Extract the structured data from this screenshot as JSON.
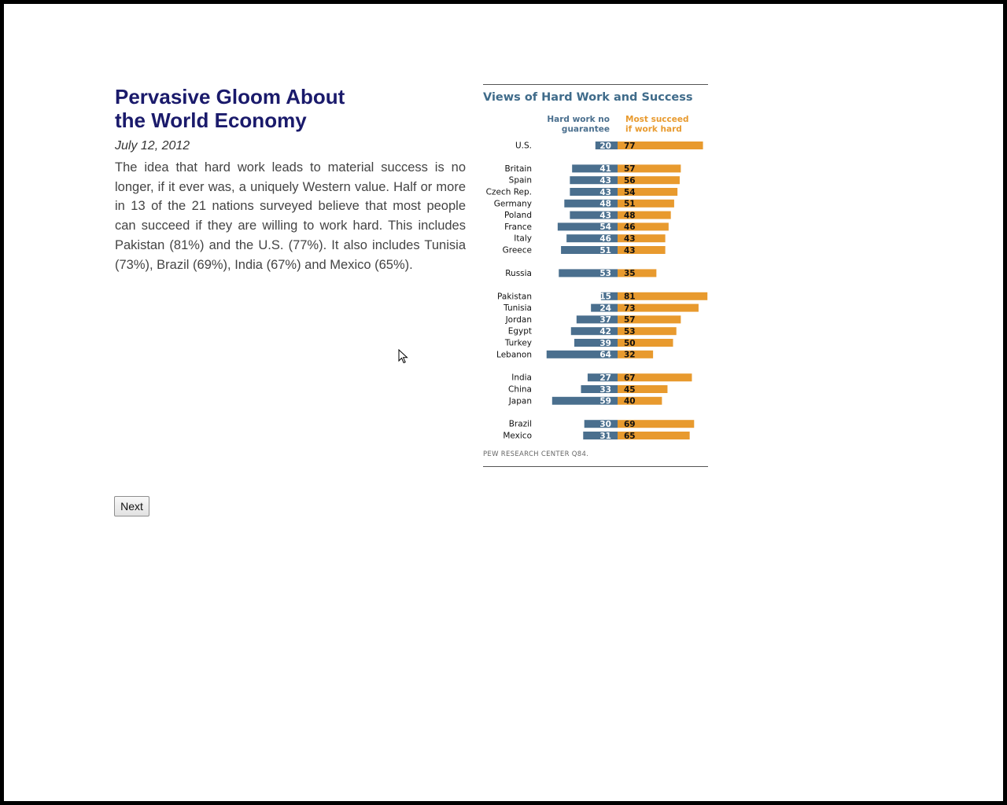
{
  "article": {
    "title_line1": "Pervasive Gloom About",
    "title_line2": "the World Economy",
    "date": "July 12, 2012",
    "body": "The idea that hard work leads to material success is no longer, if it ever was, a uniquely Western value. Half or more in 13 of the 21 nations surveyed believe that most people can succeed if they are willing to work hard. This includes Pakistan (81%) and the U.S. (77%). It also includes Tunisia (73%), Brazil (69%), India (67%) and Mexico (65%)."
  },
  "nav": {
    "next_label": "Next"
  },
  "colors": {
    "title": "#1a1a6b",
    "series_blue": "#4a6f8e",
    "series_orange": "#e89a2e"
  },
  "chart_data": {
    "type": "bar",
    "title": "Views of Hard Work and Success",
    "source": "PEW RESEARCH CENTER Q84.",
    "series": [
      {
        "name": "Hard work no guarantee",
        "header_lines": [
          "Hard work no",
          "guarantee"
        ],
        "color": "#4a6f8e"
      },
      {
        "name": "Most succeed if work hard",
        "header_lines": [
          "Most succeed",
          "if work hard"
        ],
        "color": "#e89a2e"
      }
    ],
    "groups": [
      [
        {
          "country": "U.S.",
          "values": [
            20,
            77
          ]
        }
      ],
      [
        {
          "country": "Britain",
          "values": [
            41,
            57
          ]
        },
        {
          "country": "Spain",
          "values": [
            43,
            56
          ]
        },
        {
          "country": "Czech Rep.",
          "values": [
            43,
            54
          ]
        },
        {
          "country": "Germany",
          "values": [
            48,
            51
          ]
        },
        {
          "country": "Poland",
          "values": [
            43,
            48
          ]
        },
        {
          "country": "France",
          "values": [
            54,
            46
          ]
        },
        {
          "country": "Italy",
          "values": [
            46,
            43
          ]
        },
        {
          "country": "Greece",
          "values": [
            51,
            43
          ]
        }
      ],
      [
        {
          "country": "Russia",
          "values": [
            53,
            35
          ]
        }
      ],
      [
        {
          "country": "Pakistan",
          "values": [
            15,
            81
          ]
        },
        {
          "country": "Tunisia",
          "values": [
            24,
            73
          ]
        },
        {
          "country": "Jordan",
          "values": [
            37,
            57
          ]
        },
        {
          "country": "Egypt",
          "values": [
            42,
            53
          ]
        },
        {
          "country": "Turkey",
          "values": [
            39,
            50
          ]
        },
        {
          "country": "Lebanon",
          "values": [
            64,
            32
          ]
        }
      ],
      [
        {
          "country": "India",
          "values": [
            27,
            67
          ]
        },
        {
          "country": "China",
          "values": [
            33,
            45
          ]
        },
        {
          "country": "Japan",
          "values": [
            59,
            40
          ]
        }
      ],
      [
        {
          "country": "Brazil",
          "values": [
            30,
            69
          ]
        },
        {
          "country": "Mexico",
          "values": [
            31,
            65
          ]
        }
      ]
    ]
  }
}
